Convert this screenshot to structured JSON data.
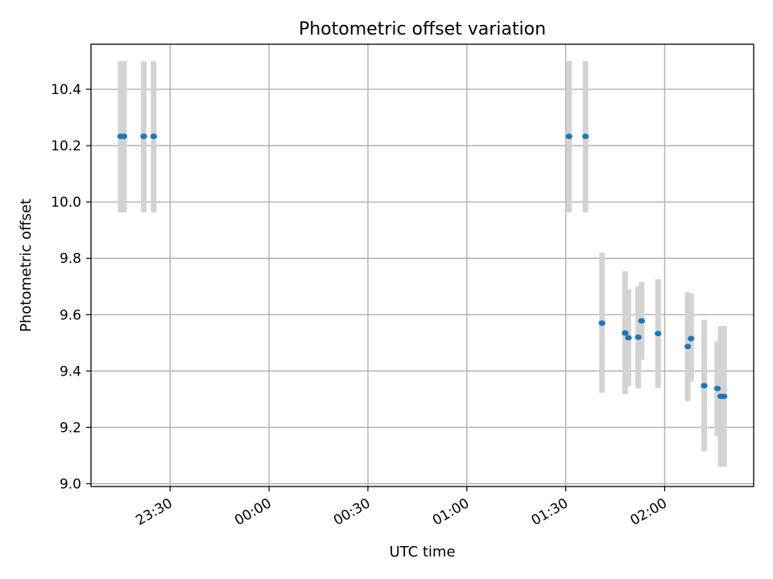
{
  "chart_data": {
    "type": "scatter",
    "title": "Photometric offset variation",
    "xlabel": "UTC time",
    "ylabel": "Photometric offset",
    "grid": true,
    "x_range": [
      "23:06",
      "02:27"
    ],
    "ylim": [
      8.99,
      10.56
    ],
    "x_ticks": [
      "23:30",
      "00:00",
      "00:30",
      "01:00",
      "01:30",
      "02:00"
    ],
    "y_ticks": [
      "9.0",
      "9.2",
      "9.4",
      "9.6",
      "9.8",
      "10.0",
      "10.2",
      "10.4"
    ],
    "marker_color": "#1f77b4",
    "errorbar_color": "#d3d3d3",
    "points": [
      {
        "time": "23:15",
        "y": 10.233,
        "err_low": 9.963,
        "err_high": 10.5
      },
      {
        "time": "23:16",
        "y": 10.233,
        "err_low": 9.963,
        "err_high": 10.5
      },
      {
        "time": "23:22",
        "y": 10.233,
        "err_low": 9.963,
        "err_high": 10.5
      },
      {
        "time": "23:25",
        "y": 10.233,
        "err_low": 9.963,
        "err_high": 10.5
      },
      {
        "time": "01:31",
        "y": 10.233,
        "err_low": 9.963,
        "err_high": 10.5
      },
      {
        "time": "01:36",
        "y": 10.233,
        "err_low": 9.963,
        "err_high": 10.5
      },
      {
        "time": "01:41",
        "y": 9.57,
        "err_low": 9.323,
        "err_high": 9.82
      },
      {
        "time": "01:48",
        "y": 9.535,
        "err_low": 9.318,
        "err_high": 9.754
      },
      {
        "time": "01:49",
        "y": 9.518,
        "err_low": 9.347,
        "err_high": 9.69
      },
      {
        "time": "01:52",
        "y": 9.52,
        "err_low": 9.338,
        "err_high": 9.7
      },
      {
        "time": "01:53",
        "y": 9.578,
        "err_low": 9.44,
        "err_high": 9.716
      },
      {
        "time": "01:58",
        "y": 9.533,
        "err_low": 9.34,
        "err_high": 9.726
      },
      {
        "time": "02:07",
        "y": 9.487,
        "err_low": 9.293,
        "err_high": 9.68
      },
      {
        "time": "02:08",
        "y": 9.515,
        "err_low": 9.362,
        "err_high": 9.675
      },
      {
        "time": "02:12",
        "y": 9.348,
        "err_low": 9.115,
        "err_high": 9.582
      },
      {
        "time": "02:16",
        "y": 9.338,
        "err_low": 9.17,
        "err_high": 9.505
      },
      {
        "time": "02:17",
        "y": 9.31,
        "err_low": 9.06,
        "err_high": 9.56
      },
      {
        "time": "02:18",
        "y": 9.31,
        "err_low": 9.06,
        "err_high": 9.56
      }
    ]
  }
}
